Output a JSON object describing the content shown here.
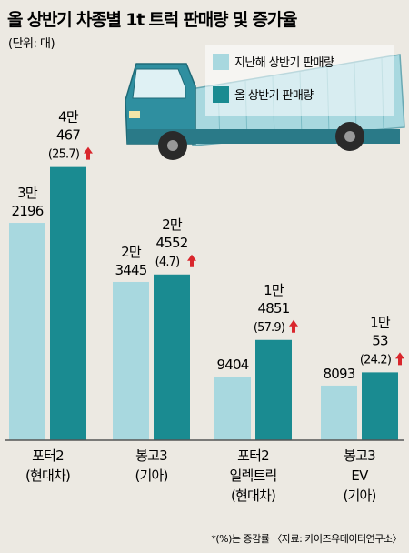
{
  "title": "올 상반기 차종별 1t 트럭 판매량 및 증가율",
  "unit": "(단위: 대)",
  "footnote": "*(%)는 증감률 〈자료: 카이즈유데이터연구소〉",
  "colors": {
    "prev": "#a8d8df",
    "curr": "#1a8b91",
    "up_arrow": "#d9262c",
    "baseline": "#555555"
  },
  "chart_data": {
    "type": "bar",
    "title": "올 상반기 차종별 1t 트럭 판매량 및 증가율",
    "categories": [
      [
        "포터2",
        "(현대차)"
      ],
      [
        "봉고3",
        "(기아)"
      ],
      [
        "포터2",
        "일렉트릭",
        "(현대차)"
      ],
      [
        "봉고3",
        "EV",
        "(기아)"
      ]
    ],
    "series": [
      {
        "name": "지난해 상반기 판매량",
        "values": [
          32196,
          23445,
          9404,
          8093
        ],
        "value_labels": [
          [
            "3만",
            "2196"
          ],
          [
            "2만",
            "3445"
          ],
          [
            "9404"
          ],
          [
            "8093"
          ]
        ]
      },
      {
        "name": "올 상반기 판매량",
        "values": [
          40467,
          24552,
          14851,
          10053
        ],
        "value_labels": [
          [
            "4만",
            "467"
          ],
          [
            "2만",
            "4552"
          ],
          [
            "1만",
            "4851"
          ],
          [
            "1만",
            "53"
          ]
        ]
      }
    ],
    "growth_rates": [
      "25.7",
      "4.7",
      "57.9",
      "24.2"
    ],
    "growth_direction": "up",
    "ylim": [
      0,
      45000
    ],
    "legend": "top-right"
  }
}
